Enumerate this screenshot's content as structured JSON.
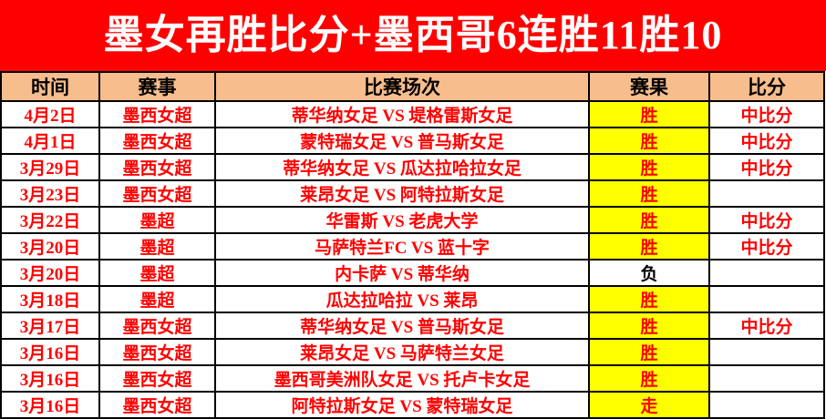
{
  "banner": {
    "title": "墨女再胜比分+墨西哥6连胜11胜10"
  },
  "colors": {
    "banner_bg": "#FF0000",
    "banner_text": "#FFFFFF",
    "header_bg": "#F8BD8D",
    "row_text": "#FF0000",
    "win_bg": "#FFFF00",
    "loss_text": "#000000",
    "border": "#000000"
  },
  "table": {
    "vs_separator": "VS",
    "headers": [
      {
        "key": "date",
        "label": "时间"
      },
      {
        "key": "league",
        "label": "赛事"
      },
      {
        "key": "match",
        "label": "比赛场次"
      },
      {
        "key": "result",
        "label": "赛果"
      },
      {
        "key": "score",
        "label": "比分"
      }
    ],
    "rows": [
      {
        "date": "4月2日",
        "league": "墨西女超",
        "home": "蒂华纳女足",
        "away": "堤格雷斯女足",
        "result": "胜",
        "result_highlight": true,
        "score": "中比分"
      },
      {
        "date": "4月1日",
        "league": "墨西女超",
        "home": "蒙特瑞女足",
        "away": "普马斯女足",
        "result": "胜",
        "result_highlight": true,
        "score": "中比分"
      },
      {
        "date": "3月29日",
        "league": "墨西女超",
        "home": "蒂华纳女足",
        "away": "瓜达拉哈拉女足",
        "result": "胜",
        "result_highlight": true,
        "score": "中比分"
      },
      {
        "date": "3月23日",
        "league": "墨西女超",
        "home": "莱昂女足",
        "away": "阿特拉斯女足",
        "result": "胜",
        "result_highlight": true,
        "score": ""
      },
      {
        "date": "3月22日",
        "league": "墨超",
        "home": "华雷斯",
        "away": "老虎大学",
        "result": "胜",
        "result_highlight": true,
        "score": "中比分"
      },
      {
        "date": "3月20日",
        "league": "墨超",
        "home": "马萨特兰FC",
        "away": "蓝十字",
        "result": "胜",
        "result_highlight": true,
        "score": "中比分"
      },
      {
        "date": "3月20日",
        "league": "墨超",
        "home": "内卡萨",
        "away": "蒂华纳",
        "result": "负",
        "result_highlight": false,
        "score": ""
      },
      {
        "date": "3月18日",
        "league": "墨超",
        "home": "瓜达拉哈拉",
        "away": "莱昂",
        "result": "胜",
        "result_highlight": true,
        "score": ""
      },
      {
        "date": "3月17日",
        "league": "墨西女超",
        "home": "蒂华纳女足",
        "away": "普马斯女足",
        "result": "胜",
        "result_highlight": true,
        "score": "中比分"
      },
      {
        "date": "3月16日",
        "league": "墨西女超",
        "home": "莱昂女足",
        "away": "马萨特兰女足",
        "result": "胜",
        "result_highlight": true,
        "score": ""
      },
      {
        "date": "3月16日",
        "league": "墨西女超",
        "home": "墨西哥美洲队女足",
        "away": "托卢卡女足",
        "result": "胜",
        "result_highlight": true,
        "score": ""
      },
      {
        "date": "3月16日",
        "league": "墨西女超",
        "home": "阿特拉斯女足",
        "away": "蒙特瑞女足",
        "result": "走",
        "result_highlight": true,
        "score": ""
      }
    ]
  }
}
